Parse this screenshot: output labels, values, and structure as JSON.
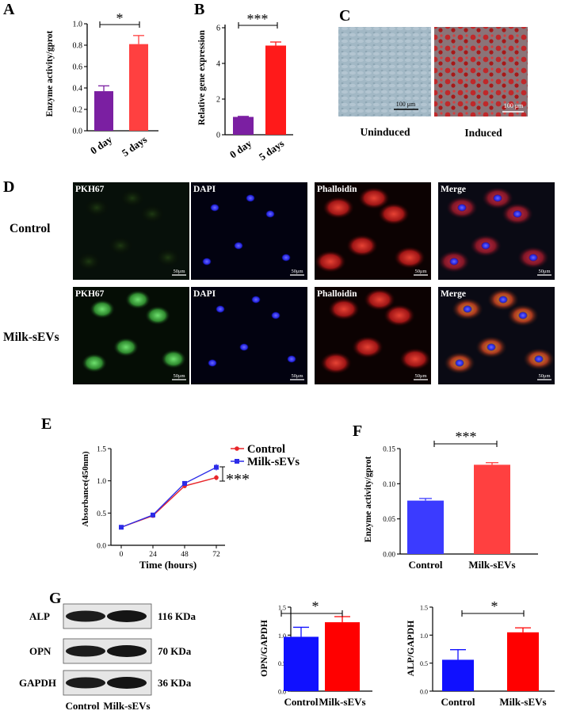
{
  "panels": {
    "A": {
      "letter": "A",
      "ylabel": "Enzyme activity/gprot",
      "sig": "*",
      "chart_data": {
        "type": "bar",
        "categories": [
          "0 day",
          "5 days"
        ],
        "values": [
          0.37,
          0.81
        ],
        "errors": [
          0.05,
          0.08
        ],
        "colors": [
          "#7b1fa2",
          "#ff4040"
        ],
        "ylim": [
          0,
          1.0
        ],
        "yticks": [
          "0.0",
          "0.2",
          "0.4",
          "0.6",
          "0.8",
          "1.0"
        ],
        "ytick_values": [
          0,
          0.2,
          0.4,
          0.6,
          0.8,
          1.0
        ]
      }
    },
    "B": {
      "letter": "B",
      "ylabel": "Relative gene expression",
      "sig": "***",
      "chart_data": {
        "type": "bar",
        "categories": [
          "0 day",
          "5 days"
        ],
        "values": [
          1.0,
          5.0
        ],
        "errors": [
          0.03,
          0.2
        ],
        "colors": [
          "#7b1fa2",
          "#ff1a1a"
        ],
        "ylim": [
          0,
          6
        ],
        "yticks": [
          "0",
          "2",
          "4",
          "6"
        ],
        "ytick_values": [
          0,
          2,
          4,
          6
        ]
      }
    },
    "C": {
      "letter": "C",
      "labels": [
        "Uninduced",
        "Induced"
      ],
      "scalebars": [
        "100 μm",
        "100 μm"
      ]
    },
    "D": {
      "letter": "D",
      "rows": [
        "Control",
        "Milk-sEVs"
      ],
      "channels": [
        "PKH67",
        "DAPI",
        "Phalloidin",
        "Merge"
      ],
      "scale": "50μm"
    },
    "E": {
      "letter": "E",
      "xlabel": "Time (hours)",
      "ylabel": "Absorbance(450nm)",
      "sig": "***",
      "chart_data": {
        "type": "line",
        "x": [
          0,
          24,
          48,
          72
        ],
        "xticks": [
          "0",
          "24",
          "48",
          "72"
        ],
        "ylim": [
          0,
          1.5
        ],
        "yticks": [
          "0.0",
          "0.5",
          "1.0",
          "1.5"
        ],
        "ytick_values": [
          0,
          0.5,
          1.0,
          1.5
        ],
        "series": [
          {
            "name": "Control",
            "values": [
              0.28,
              0.46,
              0.92,
              1.05
            ],
            "errors": [
              0.02,
              0.02,
              0.03,
              0.04
            ],
            "color": "#e8262a"
          },
          {
            "name": "Milk-sEVs",
            "values": [
              0.28,
              0.47,
              0.96,
              1.21
            ],
            "errors": [
              0.02,
              0.02,
              0.03,
              0.05
            ],
            "color": "#2c2ce8"
          }
        ],
        "legend": "top-right"
      }
    },
    "F": {
      "letter": "F",
      "ylabel": "Enzyme activity/gprot",
      "sig": "***",
      "chart_data": {
        "type": "bar",
        "categories": [
          "Control",
          "Milk-sEVs"
        ],
        "values": [
          0.076,
          0.127
        ],
        "errors": [
          0.003,
          0.003
        ],
        "colors": [
          "#3b3bff",
          "#ff4040"
        ],
        "ylim": [
          0,
          0.15
        ],
        "yticks": [
          "0.00",
          "0.05",
          "0.10",
          "0.15"
        ],
        "ytick_values": [
          0,
          0.05,
          0.1,
          0.15
        ]
      }
    },
    "G": {
      "letter": "G",
      "blot_rows": [
        {
          "label": "ALP",
          "size": "116 KDa"
        },
        {
          "label": "OPN",
          "size": "70 KDa"
        },
        {
          "label": "GAPDH",
          "size": "36 KDa"
        }
      ],
      "blot_lanes": [
        "Control",
        "Milk-sEVs"
      ],
      "opn": {
        "ylabel": "OPN/GAPDH",
        "sig": "*",
        "chart_data": {
          "type": "bar",
          "categories": [
            "Control",
            "Milk-sEVs"
          ],
          "values": [
            0.97,
            1.23
          ],
          "errors": [
            0.17,
            0.1
          ],
          "colors": [
            "#1010ff",
            "#ff0000"
          ],
          "ylim": [
            0,
            1.5
          ],
          "yticks": [
            "0.0",
            "0.5",
            "1.0",
            "1.5"
          ],
          "ytick_values": [
            0,
            0.5,
            1.0,
            1.5
          ]
        }
      },
      "alp": {
        "ylabel": "ALP/GAPDH",
        "sig": "*",
        "chart_data": {
          "type": "bar",
          "categories": [
            "Control",
            "Milk-sEVs"
          ],
          "values": [
            0.56,
            1.05
          ],
          "errors": [
            0.18,
            0.08
          ],
          "colors": [
            "#1010ff",
            "#ff0000"
          ],
          "ylim": [
            0,
            1.5
          ],
          "yticks": [
            "0.0",
            "0.5",
            "1.0",
            "1.5"
          ],
          "ytick_values": [
            0,
            0.5,
            1.0,
            1.5
          ]
        }
      }
    }
  }
}
